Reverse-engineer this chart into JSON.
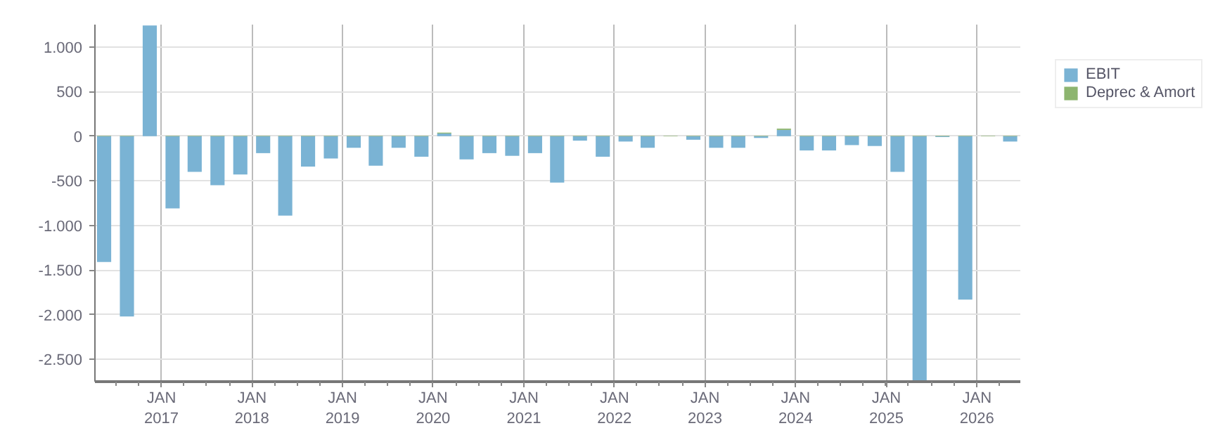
{
  "chart_data": {
    "type": "bar",
    "stacked": true,
    "x": [
      "2016-05-15",
      "2016-08-15",
      "2016-11-15",
      "2017-02-15",
      "2017-05-15",
      "2017-08-15",
      "2017-11-15",
      "2018-02-15",
      "2018-05-15",
      "2018-08-15",
      "2018-11-15",
      "2019-02-15",
      "2019-05-15",
      "2019-08-15",
      "2019-11-15",
      "2020-02-15",
      "2020-05-15",
      "2020-08-15",
      "2020-11-15",
      "2021-02-15",
      "2021-05-15",
      "2021-08-15",
      "2021-11-15",
      "2022-02-15",
      "2022-05-15",
      "2022-08-15",
      "2022-11-15",
      "2023-02-15",
      "2023-05-15",
      "2023-08-15",
      "2023-11-15",
      "2024-02-15",
      "2024-05-15",
      "2024-08-15",
      "2024-11-15",
      "2025-02-15",
      "2025-05-15",
      "2025-08-15",
      "2025-11-15",
      "2026-02-15",
      "2026-05-15"
    ],
    "series": [
      {
        "name": "EBIT",
        "color": "#7ab3d4",
        "values": [
          -1410,
          -2020,
          1240,
          -810,
          -400,
          -550,
          -430,
          -190,
          -890,
          -340,
          -250,
          -130,
          -330,
          -130,
          -230,
          30,
          -260,
          -190,
          -220,
          -190,
          -520,
          -50,
          -230,
          -60,
          -130,
          0,
          -40,
          -130,
          -130,
          -20,
          70,
          -160,
          -160,
          -100,
          -110,
          -400,
          -2750,
          -10,
          -1830,
          0,
          -60
        ]
      },
      {
        "name": "Deprec & Amort",
        "color": "#8db56f",
        "values": [
          5,
          5,
          null,
          5,
          5,
          5,
          5,
          5,
          5,
          5,
          5,
          5,
          5,
          5,
          5,
          10,
          5,
          5,
          5,
          5,
          5,
          5,
          5,
          5,
          5,
          5,
          5,
          5,
          5,
          5,
          15,
          5,
          5,
          5,
          5,
          5,
          5,
          5,
          5,
          5,
          5
        ]
      }
    ],
    "xlim": [
      "2016-04-08",
      "2026-06-25"
    ],
    "xticks": [
      {
        "value": "2017-01-01",
        "label": "JAN\n2017"
      },
      {
        "value": "2018-01-01",
        "label": "JAN\n2018"
      },
      {
        "value": "2019-01-01",
        "label": "JAN\n2019"
      },
      {
        "value": "2020-01-01",
        "label": "JAN\n2020"
      },
      {
        "value": "2021-01-01",
        "label": "JAN\n2021"
      },
      {
        "value": "2022-01-01",
        "label": "JAN\n2022"
      },
      {
        "value": "2023-01-01",
        "label": "JAN\n2023"
      },
      {
        "value": "2024-01-01",
        "label": "JAN\n2024"
      },
      {
        "value": "2025-01-01",
        "label": "JAN\n2025"
      },
      {
        "value": "2026-01-01",
        "label": "JAN\n2026"
      }
    ],
    "ylim": [
      -2750,
      1250
    ],
    "yticks": [
      {
        "value": -2500,
        "label": "-2.500"
      },
      {
        "value": -2000,
        "label": "-2.000"
      },
      {
        "value": -1500,
        "label": "-1.500"
      },
      {
        "value": -1000,
        "label": "-1.000"
      },
      {
        "value": -500,
        "label": "-500"
      },
      0,
      500,
      {
        "value": 1000,
        "label": "1.000"
      }
    ],
    "grid": true,
    "legend": "top right"
  }
}
